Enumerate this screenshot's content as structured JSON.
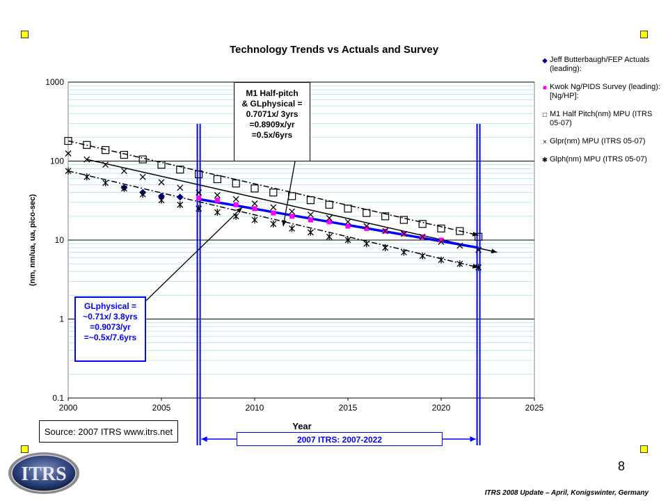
{
  "slide": {
    "page_number": "8",
    "footer": "ITRS 2008 Update – April, Konigswinter, Germany",
    "logo_text": "ITRS",
    "source_note": "Source:  2007 ITRS www.itrs.net",
    "range_label": "2007 ITRS:  2007-2022"
  },
  "annotations": {
    "m1": [
      "M1 Half-pitch",
      "& GLphysical =",
      "0.7071x/ 3yrs",
      "=0.8909x/yr",
      "=0.5x/6yrs"
    ],
    "gl": [
      "GLphysical =",
      "~0.71x/ 3.8yrs",
      "=0.9073/yr",
      "=~0.5x/7.6yrs"
    ]
  },
  "colors": {
    "blue": "#0000ff",
    "navy": "#000080",
    "magenta": "#ff00ff",
    "gridline": "#b0e0f0",
    "grid_major": "#000000",
    "corner": "#ffff00"
  },
  "chart_data": {
    "type": "scatter",
    "title": "Technology Trends vs Actuals and Survey",
    "xlabel": "Year",
    "ylabel": "(nm, nm/ua, ua, pico-sec)",
    "xlim": [
      2000,
      2025
    ],
    "ylim": [
      0.1,
      1000
    ],
    "yscale": "log",
    "x_ticks": [
      "2000",
      "2005",
      "2010",
      "2015",
      "2020",
      "2025"
    ],
    "y_ticks": [
      "0.1",
      "1",
      "10",
      "100",
      "1000"
    ],
    "series": [
      {
        "name": "Jeff Butterbaugh/FEP Actuals (leading):",
        "marker": "diamond",
        "color": "#000080",
        "x": [
          2003,
          2004,
          2005,
          2006
        ],
        "y": [
          46,
          40,
          36,
          35
        ]
      },
      {
        "name": "Kwok Ng/PIDS Survey (leading): [Ng/HP]:",
        "marker": "square-filled",
        "color": "#ff00ff",
        "x": [
          2007,
          2008,
          2009,
          2010,
          2011,
          2012,
          2013,
          2014,
          2015,
          2016,
          2017,
          2018,
          2019,
          2020
        ],
        "y": [
          34,
          32,
          28,
          25,
          22,
          20,
          18,
          17,
          15,
          14,
          13,
          12,
          11,
          10
        ]
      },
      {
        "name": "M1 Half Pitch(nm) MPU (ITRS 05-07)",
        "marker": "square-open",
        "color": "#000000",
        "x": [
          2000,
          2001,
          2002,
          2003,
          2004,
          2005,
          2006,
          2007,
          2008,
          2009,
          2010,
          2011,
          2012,
          2013,
          2014,
          2015,
          2016,
          2017,
          2018,
          2019,
          2020,
          2021,
          2022
        ],
        "y": [
          180,
          160,
          138,
          120,
          105,
          90,
          78,
          68,
          59,
          52,
          45,
          40,
          36,
          32,
          28,
          25,
          22,
          20,
          18,
          16,
          14,
          13,
          11
        ]
      },
      {
        "name": "Glpr(nm) MPU (ITRS 05-07)",
        "marker": "x",
        "color": "#000000",
        "x": [
          2000,
          2001,
          2002,
          2003,
          2004,
          2005,
          2006,
          2007,
          2008,
          2009,
          2010,
          2011,
          2012,
          2013,
          2014,
          2015,
          2016,
          2017,
          2018,
          2019,
          2020,
          2021,
          2022
        ],
        "y": [
          125,
          105,
          90,
          75,
          63,
          54,
          46,
          40,
          37,
          33,
          29,
          26,
          23,
          21,
          19,
          17,
          15,
          13,
          12,
          11,
          9.5,
          8.5,
          7.5
        ]
      },
      {
        "name": "Glph(nm) MPU (ITRS 05-07)",
        "marker": "asterisk",
        "color": "#000000",
        "x": [
          2000,
          2001,
          2002,
          2003,
          2004,
          2005,
          2006,
          2007,
          2008,
          2009,
          2010,
          2011,
          2012,
          2013,
          2014,
          2015,
          2016,
          2017,
          2018,
          2019,
          2020,
          2021,
          2022
        ],
        "y": [
          75,
          63,
          53,
          45,
          38,
          32,
          28,
          25,
          22.5,
          20,
          18,
          16,
          14,
          12.5,
          11,
          10,
          9,
          8,
          7,
          6.3,
          5.6,
          5,
          4.5
        ]
      }
    ],
    "trend_lines": [
      {
        "style": "dash-dot",
        "x": [
          2000,
          2022
        ],
        "y": [
          180,
          11.5
        ]
      },
      {
        "style": "solid",
        "x": [
          2001,
          2023
        ],
        "y": [
          105,
          7
        ]
      },
      {
        "style": "dash-dot",
        "x": [
          2000,
          2022
        ],
        "y": [
          75,
          4.5
        ]
      },
      {
        "style": "solid-blue",
        "x": [
          2007,
          2022
        ],
        "y": [
          33,
          8
        ]
      }
    ],
    "highlight_years": [
      2007,
      2022
    ]
  }
}
